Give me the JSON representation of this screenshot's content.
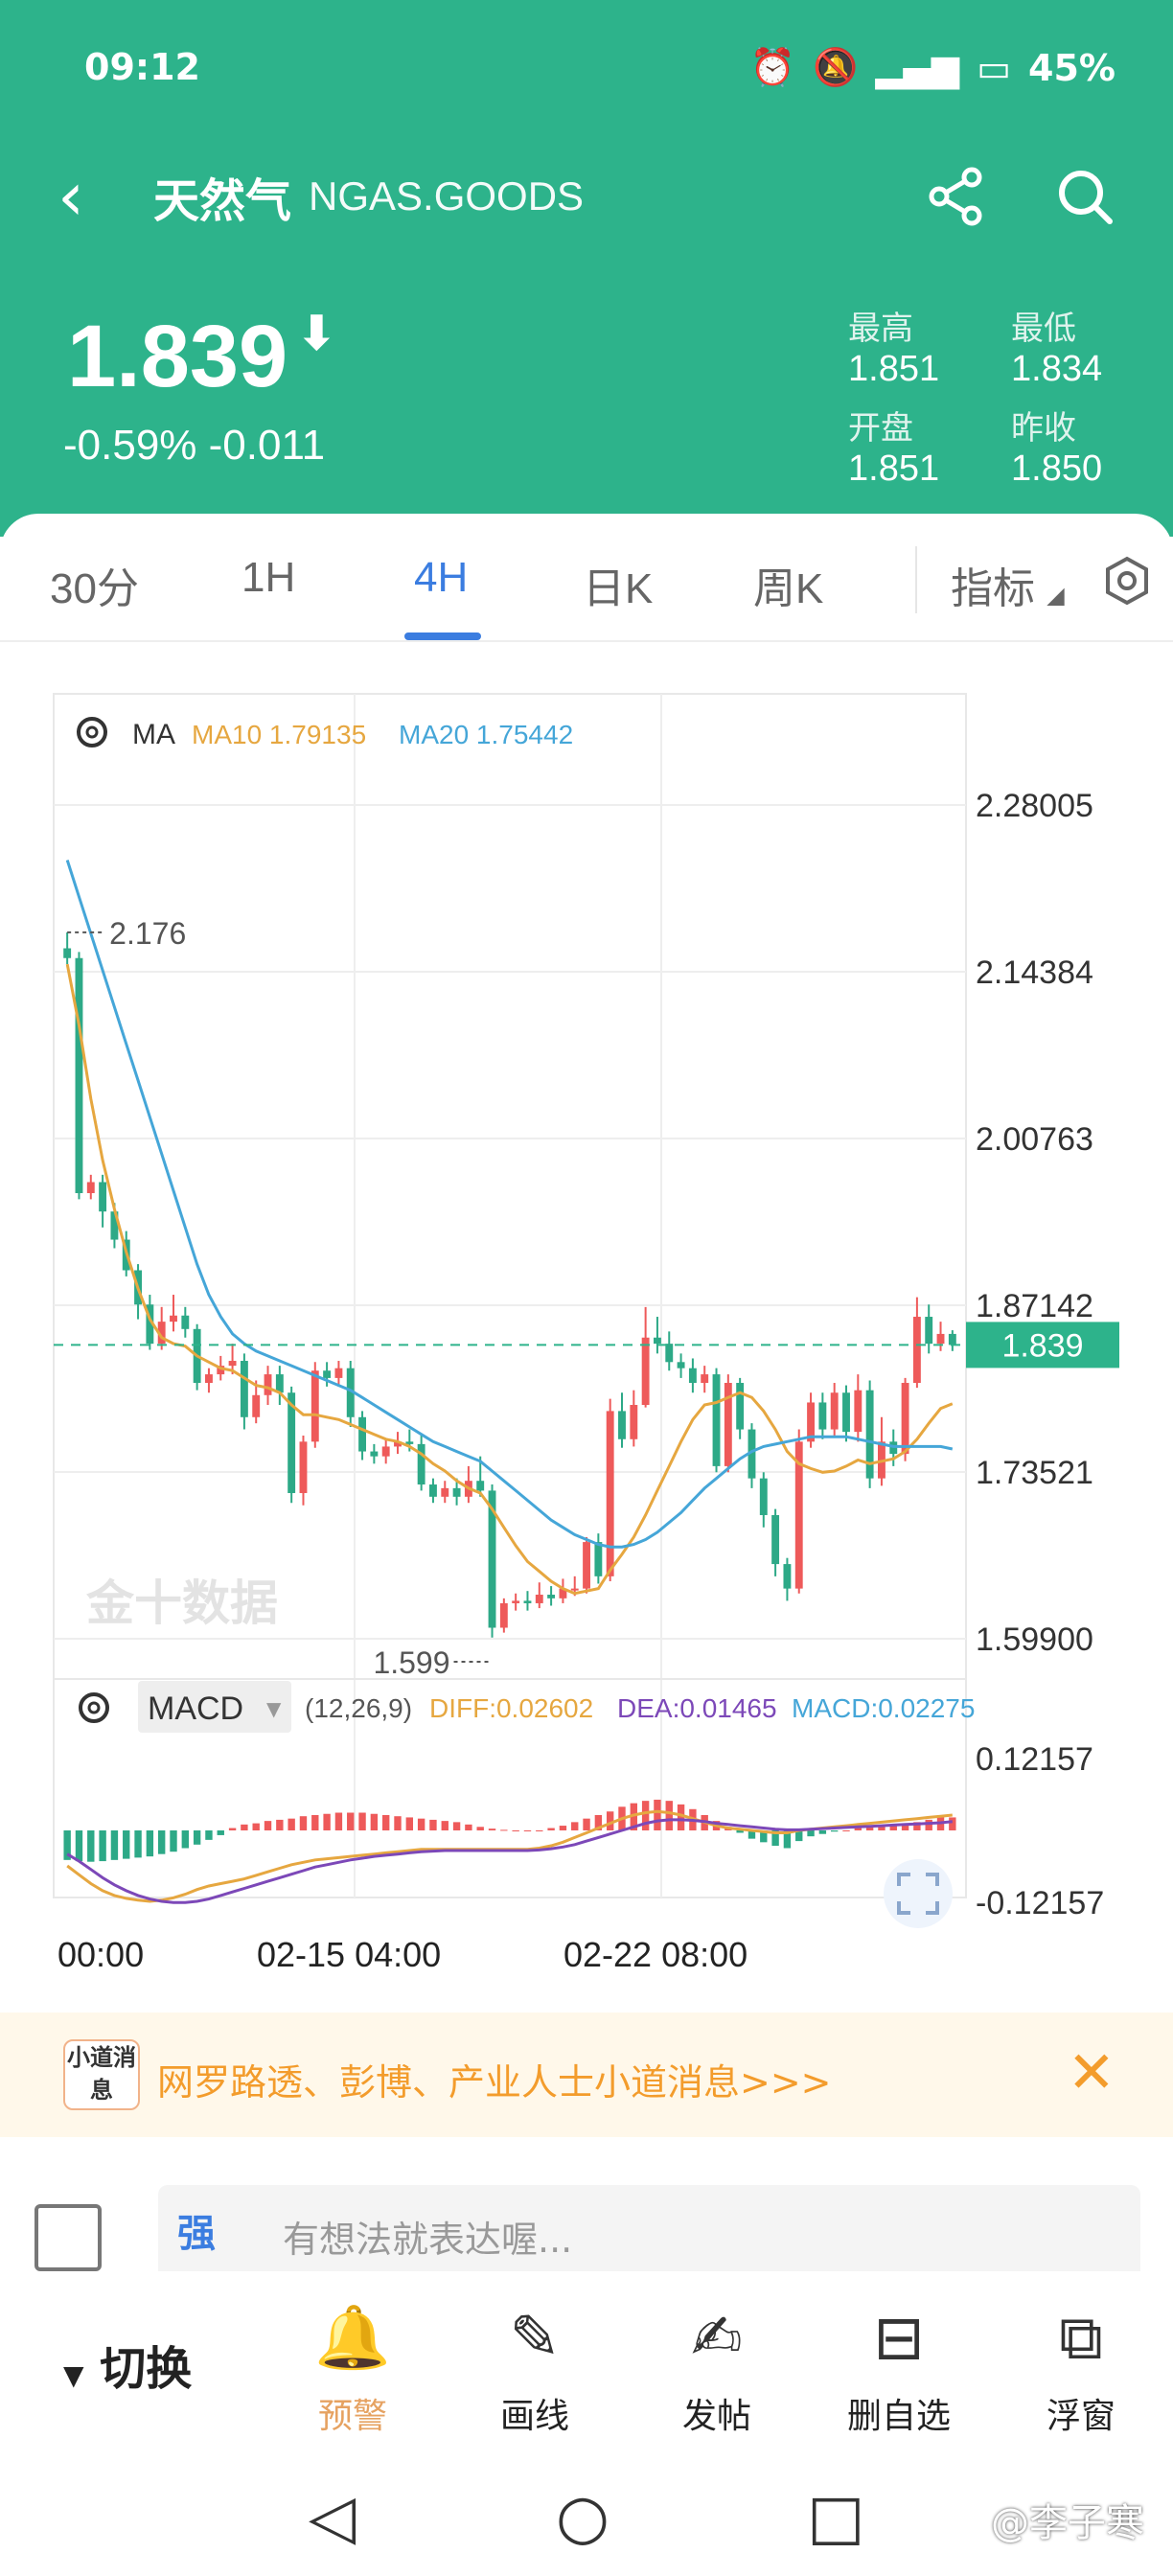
{
  "status_bar": {
    "time": "09:12",
    "battery": "45%"
  },
  "nav": {
    "title": "天然气",
    "code": "NGAS.GOODS"
  },
  "quote": {
    "price": "1.839",
    "change": "-0.59% -0.011",
    "high_label": "最高",
    "high": "1.851",
    "low_label": "最低",
    "low": "1.834",
    "open_label": "开盘",
    "open": "1.851",
    "prev_label": "昨收",
    "prev": "1.850"
  },
  "tabs": [
    {
      "label": "30分"
    },
    {
      "label": "1H"
    },
    {
      "label": "4H"
    },
    {
      "label": "日K"
    },
    {
      "label": "周K"
    },
    {
      "label": "指标"
    }
  ],
  "active_tab": "4H",
  "chart_data": {
    "type": "candlestick",
    "ma_legend": {
      "label": "MA",
      "ma10": "MA10 1.79135",
      "ma20": "MA20 1.75442"
    },
    "y_ticks": [
      "2.28005",
      "2.14384",
      "2.00763",
      "1.87142",
      "1.73521",
      "1.59900"
    ],
    "ylim": [
      1.599,
      2.28005
    ],
    "current_price": "1.839",
    "high_annotation": "2.176",
    "low_annotation": "1.599",
    "x_labels": [
      "00:00",
      "02-15 04:00",
      "02-22 08:00"
    ],
    "candles": [
      [
        2.163,
        2.155,
        2.176,
        2.15
      ],
      [
        2.155,
        1.963,
        2.16,
        1.958
      ],
      [
        1.963,
        1.972,
        1.978,
        1.958
      ],
      [
        1.972,
        1.948,
        1.978,
        1.935
      ],
      [
        1.948,
        1.925,
        1.955,
        1.918
      ],
      [
        1.925,
        1.9,
        1.932,
        1.895
      ],
      [
        1.9,
        1.872,
        1.905,
        1.86
      ],
      [
        1.872,
        1.84,
        1.88,
        1.835
      ],
      [
        1.84,
        1.858,
        1.87,
        1.835
      ],
      [
        1.858,
        1.863,
        1.88,
        1.85
      ],
      [
        1.863,
        1.852,
        1.87,
        1.845
      ],
      [
        1.852,
        1.808,
        1.856,
        1.802
      ],
      [
        1.808,
        1.815,
        1.82,
        1.8
      ],
      [
        1.815,
        1.822,
        1.83,
        1.81
      ],
      [
        1.822,
        1.826,
        1.84,
        1.815
      ],
      [
        1.826,
        1.78,
        1.832,
        1.77
      ],
      [
        1.78,
        1.798,
        1.81,
        1.775
      ],
      [
        1.798,
        1.815,
        1.822,
        1.79
      ],
      [
        1.815,
        1.8,
        1.822,
        1.79
      ],
      [
        1.8,
        1.718,
        1.805,
        1.71
      ],
      [
        1.718,
        1.76,
        1.765,
        1.708
      ],
      [
        1.76,
        1.818,
        1.825,
        1.755
      ],
      [
        1.818,
        1.812,
        1.825,
        1.805
      ],
      [
        1.812,
        1.82,
        1.826,
        1.805
      ],
      [
        1.82,
        1.78,
        1.826,
        1.772
      ],
      [
        1.78,
        1.752,
        1.785,
        1.745
      ],
      [
        1.752,
        1.748,
        1.758,
        1.742
      ],
      [
        1.748,
        1.756,
        1.762,
        1.742
      ],
      [
        1.756,
        1.76,
        1.768,
        1.75
      ],
      [
        1.76,
        1.758,
        1.77,
        1.752
      ],
      [
        1.758,
        1.725,
        1.765,
        1.72
      ],
      [
        1.725,
        1.715,
        1.73,
        1.71
      ],
      [
        1.715,
        1.722,
        1.728,
        1.71
      ],
      [
        1.722,
        1.715,
        1.73,
        1.708
      ],
      [
        1.715,
        1.728,
        1.74,
        1.71
      ],
      [
        1.728,
        1.72,
        1.748,
        1.715
      ],
      [
        1.72,
        1.608,
        1.725,
        1.6
      ],
      [
        1.608,
        1.628,
        1.632,
        1.604
      ],
      [
        1.628,
        1.63,
        1.636,
        1.622
      ],
      [
        1.63,
        1.628,
        1.638,
        1.622
      ],
      [
        1.628,
        1.635,
        1.645,
        1.624
      ],
      [
        1.635,
        1.632,
        1.642,
        1.626
      ],
      [
        1.632,
        1.64,
        1.648,
        1.628
      ],
      [
        1.64,
        1.64,
        1.65,
        1.634
      ],
      [
        1.64,
        1.678,
        1.682,
        1.636
      ],
      [
        1.678,
        1.65,
        1.685,
        1.644
      ],
      [
        1.65,
        1.785,
        1.795,
        1.646
      ],
      [
        1.785,
        1.762,
        1.8,
        1.755
      ],
      [
        1.762,
        1.79,
        1.802,
        1.756
      ],
      [
        1.79,
        1.845,
        1.87,
        1.788
      ],
      [
        1.845,
        1.84,
        1.862,
        1.832
      ],
      [
        1.84,
        1.825,
        1.85,
        1.818
      ],
      [
        1.825,
        1.82,
        1.832,
        1.812
      ],
      [
        1.82,
        1.808,
        1.828,
        1.8
      ],
      [
        1.808,
        1.815,
        1.822,
        1.8
      ],
      [
        1.815,
        1.74,
        1.82,
        1.735
      ],
      [
        1.74,
        1.808,
        1.815,
        1.735
      ],
      [
        1.808,
        1.77,
        1.812,
        1.762
      ],
      [
        1.77,
        1.73,
        1.775,
        1.722
      ],
      [
        1.73,
        1.7,
        1.735,
        1.69
      ],
      [
        1.7,
        1.66,
        1.705,
        1.65
      ],
      [
        1.66,
        1.64,
        1.665,
        1.63
      ],
      [
        1.64,
        1.76,
        1.77,
        1.636
      ],
      [
        1.76,
        1.792,
        1.8,
        1.755
      ],
      [
        1.792,
        1.77,
        1.8,
        1.762
      ],
      [
        1.77,
        1.8,
        1.808,
        1.765
      ],
      [
        1.8,
        1.768,
        1.806,
        1.76
      ],
      [
        1.768,
        1.802,
        1.815,
        1.76
      ],
      [
        1.802,
        1.73,
        1.81,
        1.722
      ],
      [
        1.73,
        1.76,
        1.78,
        1.724
      ],
      [
        1.76,
        1.75,
        1.77,
        1.74
      ],
      [
        1.75,
        1.808,
        1.812,
        1.744
      ],
      [
        1.808,
        1.862,
        1.878,
        1.804
      ],
      [
        1.862,
        1.84,
        1.872,
        1.832
      ],
      [
        1.84,
        1.848,
        1.858,
        1.834
      ],
      [
        1.848,
        1.839,
        1.851,
        1.834
      ]
    ],
    "ma10": [
      2.15,
      2.1,
      2.04,
      1.99,
      1.95,
      1.915,
      1.885,
      1.86,
      1.845,
      1.84,
      1.838,
      1.83,
      1.825,
      1.82,
      1.818,
      1.812,
      1.806,
      1.804,
      1.8,
      1.79,
      1.782,
      1.782,
      1.78,
      1.778,
      1.774,
      1.77,
      1.766,
      1.762,
      1.76,
      1.756,
      1.75,
      1.742,
      1.736,
      1.728,
      1.722,
      1.718,
      1.705,
      1.69,
      1.675,
      1.662,
      1.654,
      1.646,
      1.64,
      1.636,
      1.638,
      1.64,
      1.655,
      1.668,
      1.682,
      1.7,
      1.72,
      1.74,
      1.76,
      1.778,
      1.79,
      1.792,
      1.796,
      1.8,
      1.796,
      1.785,
      1.77,
      1.752,
      1.742,
      1.738,
      1.735,
      1.736,
      1.74,
      1.745,
      1.742,
      1.744,
      1.746,
      1.752,
      1.762,
      1.775,
      1.787,
      1.791
    ],
    "ma20": [
      2.235,
      2.205,
      2.175,
      2.145,
      2.115,
      2.085,
      2.055,
      2.025,
      1.995,
      1.965,
      1.935,
      1.905,
      1.88,
      1.862,
      1.848,
      1.84,
      1.834,
      1.83,
      1.826,
      1.822,
      1.818,
      1.814,
      1.81,
      1.806,
      1.802,
      1.796,
      1.79,
      1.784,
      1.778,
      1.772,
      1.766,
      1.76,
      1.756,
      1.752,
      1.748,
      1.744,
      1.736,
      1.728,
      1.72,
      1.712,
      1.704,
      1.696,
      1.69,
      1.684,
      1.68,
      1.676,
      1.674,
      1.674,
      1.676,
      1.68,
      1.686,
      1.694,
      1.702,
      1.712,
      1.722,
      1.73,
      1.738,
      1.746,
      1.752,
      1.756,
      1.758,
      1.76,
      1.762,
      1.764,
      1.764,
      1.764,
      1.764,
      1.762,
      1.76,
      1.758,
      1.756,
      1.756,
      1.756,
      1.756,
      1.756,
      1.754
    ],
    "macd": {
      "label": "MACD",
      "params": "(12,26,9)",
      "diff": "DIFF:0.02602",
      "dea": "DEA:0.01465",
      "macd_value": "MACD:0.02275",
      "y_ticks": [
        "0.12157",
        "-0.12157"
      ],
      "hist": [
        -0.05,
        -0.052,
        -0.053,
        -0.052,
        -0.05,
        -0.048,
        -0.046,
        -0.044,
        -0.04,
        -0.036,
        -0.03,
        -0.024,
        -0.016,
        -0.008,
        0.004,
        0.01,
        0.012,
        0.016,
        0.018,
        0.02,
        0.024,
        0.026,
        0.028,
        0.03,
        0.03,
        0.03,
        0.028,
        0.026,
        0.024,
        0.022,
        0.02,
        0.018,
        0.016,
        0.014,
        0.01,
        0.006,
        0.003,
        0.001,
        0.0,
        0.0,
        0.0,
        0.004,
        0.008,
        0.014,
        0.02,
        0.026,
        0.032,
        0.04,
        0.046,
        0.05,
        0.052,
        0.05,
        0.044,
        0.036,
        0.026,
        0.016,
        0.006,
        -0.004,
        -0.014,
        -0.02,
        -0.026,
        -0.03,
        -0.018,
        -0.01,
        -0.006,
        -0.002,
        0.0,
        0.004,
        0.006,
        0.008,
        0.01,
        0.012,
        0.014,
        0.018,
        0.024,
        0.022
      ],
      "diff_line": [
        -0.06,
        -0.075,
        -0.09,
        -0.102,
        -0.11,
        -0.115,
        -0.118,
        -0.12,
        -0.118,
        -0.114,
        -0.108,
        -0.1,
        -0.094,
        -0.09,
        -0.086,
        -0.082,
        -0.076,
        -0.07,
        -0.064,
        -0.058,
        -0.054,
        -0.05,
        -0.048,
        -0.046,
        -0.044,
        -0.042,
        -0.04,
        -0.038,
        -0.036,
        -0.034,
        -0.032,
        -0.032,
        -0.032,
        -0.032,
        -0.032,
        -0.032,
        -0.032,
        -0.032,
        -0.032,
        -0.032,
        -0.03,
        -0.026,
        -0.02,
        -0.012,
        -0.004,
        0.004,
        0.012,
        0.02,
        0.026,
        0.03,
        0.032,
        0.03,
        0.026,
        0.02,
        0.014,
        0.008,
        0.004,
        0.002,
        0.0,
        -0.002,
        -0.004,
        -0.004,
        0.0,
        0.002,
        0.004,
        0.006,
        0.008,
        0.01,
        0.012,
        0.014,
        0.016,
        0.018,
        0.02,
        0.022,
        0.024,
        0.026
      ],
      "dea_line": [
        -0.04,
        -0.052,
        -0.066,
        -0.08,
        -0.092,
        -0.102,
        -0.11,
        -0.116,
        -0.12,
        -0.122,
        -0.122,
        -0.12,
        -0.116,
        -0.11,
        -0.104,
        -0.098,
        -0.092,
        -0.086,
        -0.08,
        -0.074,
        -0.068,
        -0.062,
        -0.058,
        -0.054,
        -0.05,
        -0.047,
        -0.044,
        -0.042,
        -0.04,
        -0.038,
        -0.036,
        -0.035,
        -0.034,
        -0.034,
        -0.034,
        -0.034,
        -0.034,
        -0.034,
        -0.034,
        -0.034,
        -0.033,
        -0.031,
        -0.028,
        -0.024,
        -0.018,
        -0.012,
        -0.006,
        0.0,
        0.006,
        0.012,
        0.016,
        0.018,
        0.018,
        0.017,
        0.015,
        0.012,
        0.01,
        0.008,
        0.006,
        0.004,
        0.002,
        0.001,
        0.001,
        0.002,
        0.003,
        0.004,
        0.005,
        0.006,
        0.007,
        0.008,
        0.009,
        0.01,
        0.011,
        0.012,
        0.013,
        0.015
      ]
    }
  },
  "banner": {
    "icon_text": "小道消息",
    "text": "网罗路透、彭博、产业人士小道消息>>>"
  },
  "comment": {
    "placeholder": "有想法就表达喔..."
  },
  "toolbar": {
    "switch_label": "切换",
    "items": [
      {
        "label": "预警"
      },
      {
        "label": "画线"
      },
      {
        "label": "发帖"
      },
      {
        "label": "删自选"
      },
      {
        "label": "浮窗"
      }
    ]
  },
  "watermark": "@李子寒",
  "chart_watermark": "金十数据"
}
